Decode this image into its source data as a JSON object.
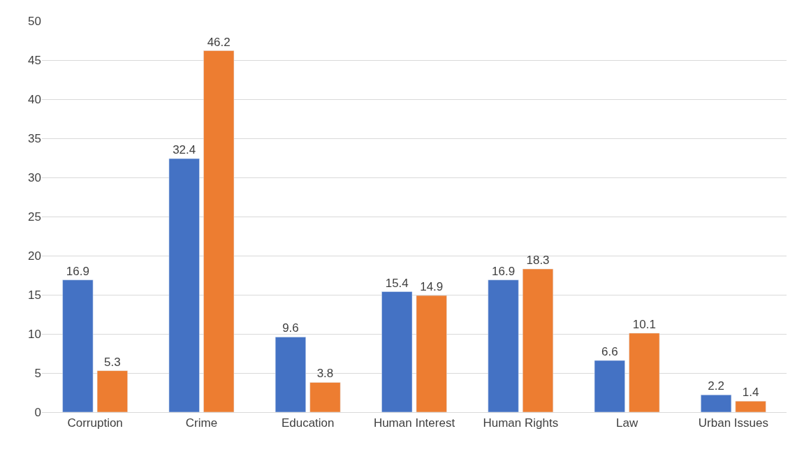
{
  "chart_data": {
    "type": "bar",
    "categories": [
      "Corruption",
      "Crime",
      "Education",
      "Human Interest",
      "Human Rights",
      "Law",
      "Urban Issues"
    ],
    "series": [
      {
        "color": "#4472c4",
        "values": [
          16.9,
          32.4,
          9.6,
          15.4,
          16.9,
          6.6,
          2.2
        ]
      },
      {
        "color": "#ed7d31",
        "values": [
          5.3,
          46.2,
          3.8,
          14.9,
          18.3,
          10.1,
          1.4
        ]
      }
    ],
    "ylim": [
      0,
      50
    ],
    "yticks": [
      0,
      5,
      10,
      15,
      20,
      25,
      30,
      35,
      40,
      45,
      50
    ],
    "grid": "y",
    "data_labels": true
  }
}
